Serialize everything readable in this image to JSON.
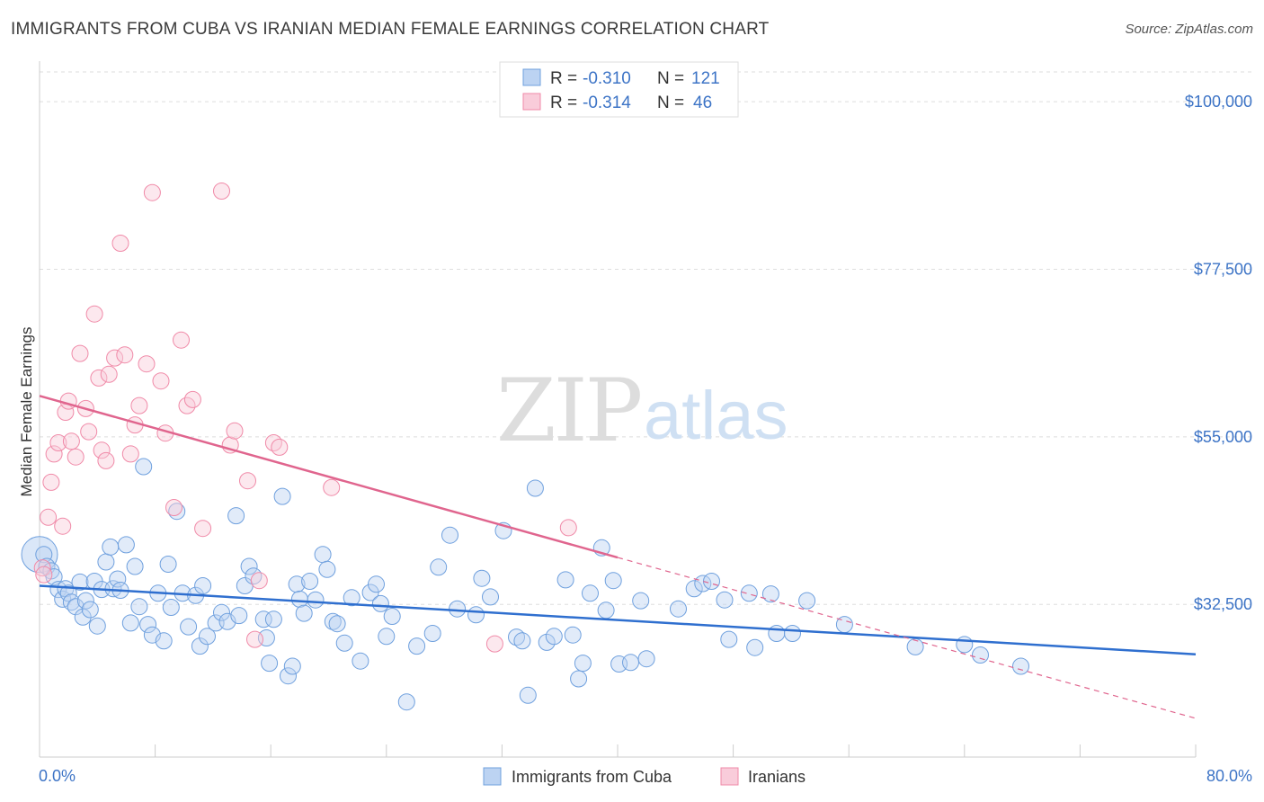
{
  "title": "IMMIGRANTS FROM CUBA VS IRANIAN MEDIAN FEMALE EARNINGS CORRELATION CHART",
  "source": "Source: ZipAtlas.com",
  "watermark": {
    "zip": "ZIP",
    "atlas": "atlas"
  },
  "colors": {
    "blue": "#6fa0de",
    "blue_line": "#2f6fcf",
    "pink": "#f08aa8",
    "pink_line": "#e0658e",
    "tick_text": "#3d74c6"
  },
  "legend": {
    "rows": [
      {
        "r_label": "R =",
        "r_value": "-0.310",
        "n_label": "N =",
        "n_value": "121"
      },
      {
        "r_label": "R =",
        "r_value": "-0.314",
        "n_label": "N =",
        "n_value": "46"
      }
    ]
  },
  "bottom_legend": [
    "Immigrants from Cuba",
    "Iranians"
  ],
  "chart_data": {
    "type": "scatter",
    "title": "IMMIGRANTS FROM CUBA VS IRANIAN MEDIAN FEMALE EARNINGS CORRELATION CHART",
    "xlabel": "",
    "ylabel": "Median Female Earnings",
    "xlim": [
      0,
      80
    ],
    "ylim": [
      12000,
      104000
    ],
    "x_tick_labels": [
      "0.0%",
      "80.0%"
    ],
    "y_ticks": [
      32500,
      55000,
      77500,
      100000
    ],
    "y_tick_labels": [
      "$32,500",
      "$55,000",
      "$77,500",
      "$100,000"
    ],
    "grid": "horizontal dashed",
    "legend_position": "top-center",
    "series": [
      {
        "name": "Immigrants from Cuba",
        "color": "#6fa0de",
        "trend": {
          "x": [
            0,
            80
          ],
          "y": [
            35000,
            25800
          ]
        },
        "points": [
          [
            0.3,
            39200
          ],
          [
            0.5,
            37600
          ],
          [
            0.8,
            37000
          ],
          [
            1.0,
            36200
          ],
          [
            1.3,
            34500
          ],
          [
            1.6,
            33200
          ],
          [
            1.8,
            34600
          ],
          [
            2.0,
            34000
          ],
          [
            2.2,
            32800
          ],
          [
            2.5,
            32200
          ],
          [
            2.8,
            35500
          ],
          [
            3.0,
            30800
          ],
          [
            3.2,
            33000
          ],
          [
            3.5,
            31800
          ],
          [
            3.8,
            35600
          ],
          [
            4.0,
            29600
          ],
          [
            4.3,
            34500
          ],
          [
            4.6,
            38200
          ],
          [
            4.9,
            40200
          ],
          [
            5.1,
            34600
          ],
          [
            5.4,
            35900
          ],
          [
            5.6,
            34400
          ],
          [
            6.0,
            40500
          ],
          [
            6.3,
            30000
          ],
          [
            6.6,
            37600
          ],
          [
            6.9,
            32200
          ],
          [
            7.2,
            51000
          ],
          [
            7.5,
            29800
          ],
          [
            7.8,
            28400
          ],
          [
            8.2,
            34000
          ],
          [
            8.6,
            27600
          ],
          [
            8.9,
            37900
          ],
          [
            9.1,
            32100
          ],
          [
            9.5,
            45000
          ],
          [
            9.9,
            34000
          ],
          [
            10.3,
            29500
          ],
          [
            10.8,
            33700
          ],
          [
            11.1,
            26900
          ],
          [
            11.3,
            35000
          ],
          [
            11.6,
            28200
          ],
          [
            12.2,
            30000
          ],
          [
            12.6,
            31400
          ],
          [
            13.0,
            30200
          ],
          [
            13.6,
            44400
          ],
          [
            13.8,
            31000
          ],
          [
            14.2,
            35000
          ],
          [
            14.5,
            37600
          ],
          [
            14.8,
            36300
          ],
          [
            15.5,
            30500
          ],
          [
            15.7,
            28000
          ],
          [
            15.9,
            24600
          ],
          [
            16.2,
            30500
          ],
          [
            16.8,
            47000
          ],
          [
            17.2,
            22900
          ],
          [
            17.5,
            24200
          ],
          [
            17.8,
            35200
          ],
          [
            18.0,
            33200
          ],
          [
            18.3,
            31300
          ],
          [
            18.7,
            35600
          ],
          [
            19.1,
            33100
          ],
          [
            19.6,
            39200
          ],
          [
            19.9,
            37200
          ],
          [
            20.3,
            30200
          ],
          [
            20.6,
            29900
          ],
          [
            21.1,
            27300
          ],
          [
            21.6,
            33400
          ],
          [
            22.2,
            24900
          ],
          [
            22.9,
            34100
          ],
          [
            23.3,
            35200
          ],
          [
            23.6,
            32600
          ],
          [
            24.0,
            28200
          ],
          [
            24.4,
            30900
          ],
          [
            25.4,
            19400
          ],
          [
            26.1,
            26900
          ],
          [
            27.2,
            28600
          ],
          [
            27.6,
            37500
          ],
          [
            28.4,
            41800
          ],
          [
            28.9,
            31900
          ],
          [
            30.2,
            31100
          ],
          [
            30.6,
            36000
          ],
          [
            31.2,
            33500
          ],
          [
            32.1,
            42400
          ],
          [
            33.0,
            28100
          ],
          [
            33.8,
            20300
          ],
          [
            33.4,
            27600
          ],
          [
            34.3,
            48100
          ],
          [
            35.1,
            27400
          ],
          [
            35.6,
            28200
          ],
          [
            36.4,
            35800
          ],
          [
            36.9,
            28400
          ],
          [
            37.3,
            22500
          ],
          [
            37.6,
            24600
          ],
          [
            38.1,
            34000
          ],
          [
            38.9,
            40100
          ],
          [
            39.2,
            31700
          ],
          [
            39.7,
            35700
          ],
          [
            40.1,
            24500
          ],
          [
            40.9,
            24700
          ],
          [
            41.6,
            33000
          ],
          [
            42.0,
            25200
          ],
          [
            44.2,
            31900
          ],
          [
            45.3,
            34600
          ],
          [
            45.9,
            35300
          ],
          [
            46.5,
            35600
          ],
          [
            47.4,
            33100
          ],
          [
            47.7,
            27800
          ],
          [
            49.1,
            34000
          ],
          [
            49.5,
            26700
          ],
          [
            50.6,
            33900
          ],
          [
            51.0,
            28600
          ],
          [
            52.1,
            28600
          ],
          [
            53.1,
            33000
          ],
          [
            55.7,
            29800
          ],
          [
            60.6,
            26800
          ],
          [
            64.0,
            27100
          ],
          [
            65.1,
            25700
          ],
          [
            67.9,
            24200
          ]
        ]
      },
      {
        "name": "Iranians",
        "color": "#f08aa8",
        "trend": {
          "x": [
            0,
            40
          ],
          "y": [
            60500,
            38800
          ]
        },
        "trend_dashed": {
          "x": [
            40,
            80
          ],
          "y": [
            38800,
            17200
          ]
        },
        "points": [
          [
            0.2,
            37400
          ],
          [
            0.3,
            36500
          ],
          [
            0.6,
            44200
          ],
          [
            0.8,
            48900
          ],
          [
            1.0,
            52700
          ],
          [
            1.3,
            54200
          ],
          [
            1.6,
            43000
          ],
          [
            1.8,
            58300
          ],
          [
            2.0,
            59800
          ],
          [
            2.2,
            54400
          ],
          [
            2.5,
            52300
          ],
          [
            2.8,
            66200
          ],
          [
            3.2,
            58800
          ],
          [
            3.4,
            55700
          ],
          [
            3.8,
            71500
          ],
          [
            4.1,
            62900
          ],
          [
            4.3,
            53200
          ],
          [
            4.6,
            51800
          ],
          [
            4.8,
            63400
          ],
          [
            5.2,
            65600
          ],
          [
            5.6,
            81000
          ],
          [
            5.9,
            66000
          ],
          [
            6.3,
            52700
          ],
          [
            6.6,
            56600
          ],
          [
            6.9,
            59200
          ],
          [
            7.4,
            64800
          ],
          [
            7.8,
            87800
          ],
          [
            8.4,
            62500
          ],
          [
            8.7,
            55500
          ],
          [
            9.3,
            45500
          ],
          [
            9.8,
            68000
          ],
          [
            10.2,
            59200
          ],
          [
            10.6,
            60000
          ],
          [
            11.3,
            42700
          ],
          [
            12.6,
            88000
          ],
          [
            13.2,
            53900
          ],
          [
            13.5,
            55800
          ],
          [
            14.4,
            49100
          ],
          [
            14.9,
            27800
          ],
          [
            15.2,
            35700
          ],
          [
            16.2,
            54200
          ],
          [
            16.6,
            53600
          ],
          [
            20.2,
            48200
          ],
          [
            31.5,
            27200
          ],
          [
            36.6,
            42800
          ]
        ]
      }
    ]
  }
}
